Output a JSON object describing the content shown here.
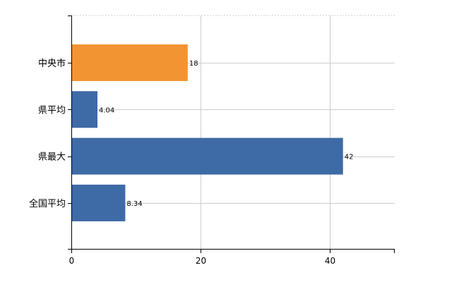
{
  "chart_data": {
    "type": "bar",
    "orientation": "horizontal",
    "categories": [
      "中央市",
      "県平均",
      "県最大",
      "全国平均"
    ],
    "values": [
      18,
      4.04,
      42,
      8.34
    ],
    "value_labels": [
      "18",
      "4.04",
      "42",
      "8.34"
    ],
    "bar_colors": [
      "#f39433",
      "#3e6aa6",
      "#3e6aa6",
      "#3e6aa6"
    ],
    "highlight_color": "#f39433",
    "default_color": "#3e6aa6",
    "xlim": [
      0,
      50
    ],
    "x_ticks": [
      0,
      20,
      40
    ],
    "x_tick_labels": [
      "0",
      "20",
      "40"
    ],
    "title": "",
    "xlabel": "",
    "ylabel": "",
    "grid": true,
    "legend": "none"
  }
}
